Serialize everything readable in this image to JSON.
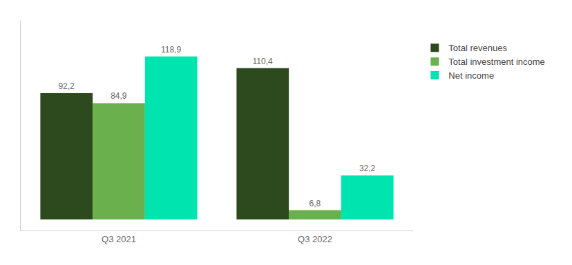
{
  "chart_data": {
    "type": "bar",
    "categories": [
      "Q3 2021",
      "Q3 2022"
    ],
    "series": [
      {
        "name": "Total revenues",
        "color": "#2d4a1e",
        "values": [
          92.2,
          110.4
        ],
        "value_labels": [
          "92,2",
          "110,4"
        ]
      },
      {
        "name": "Total investment income",
        "color": "#6ab04c",
        "values": [
          84.9,
          6.8
        ],
        "value_labels": [
          "84,9",
          "6,8"
        ]
      },
      {
        "name": "Net income",
        "color": "#00e5b0",
        "values": [
          118.9,
          32.2
        ],
        "value_labels": [
          "118,9",
          "32,2"
        ]
      }
    ],
    "ylim": [
      -8,
      145
    ],
    "yticks": [],
    "grid": false,
    "legend": "right",
    "data_labels": true,
    "tick_labels": "x"
  }
}
